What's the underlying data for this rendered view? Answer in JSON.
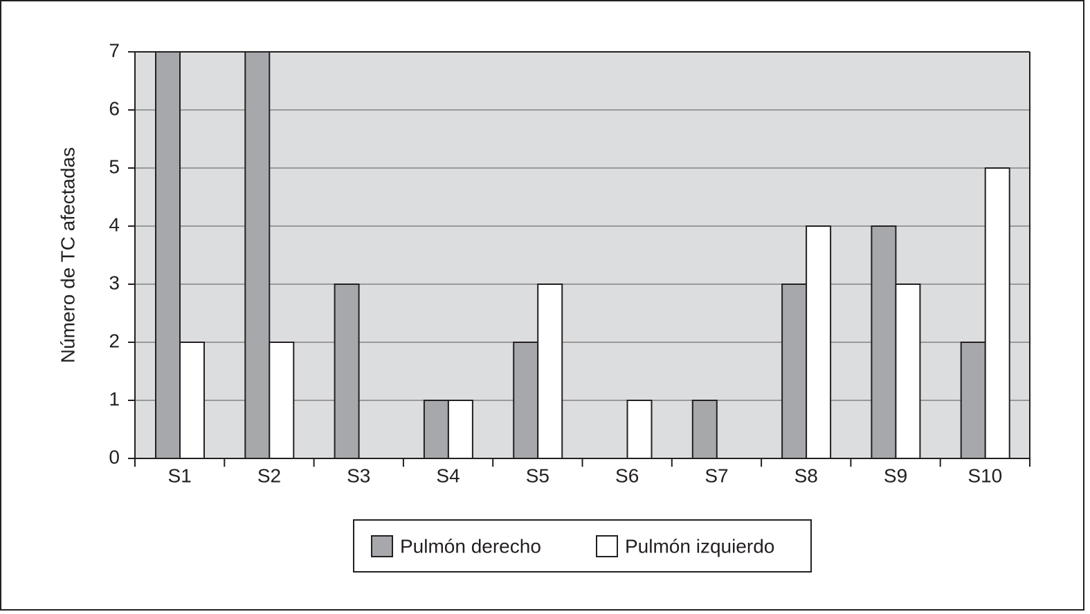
{
  "chart_data": {
    "type": "bar",
    "y_label": "Número de TC afectadas",
    "categories": [
      "S1",
      "S2",
      "S3",
      "S4",
      "S5",
      "S6",
      "S7",
      "S8",
      "S9",
      "S10"
    ],
    "series": [
      {
        "name": "Pulmón derecho",
        "color": "#a7a8ab",
        "values": [
          7,
          7,
          3,
          1,
          2,
          0,
          1,
          3,
          4,
          2
        ]
      },
      {
        "name": "Pulmón izquierdo",
        "color": "#ffffff",
        "values": [
          2,
          2,
          0,
          1,
          3,
          1,
          0,
          4,
          3,
          5
        ]
      }
    ],
    "ylim": [
      0,
      7
    ],
    "yticks": [
      0,
      1,
      2,
      3,
      4,
      5,
      6,
      7
    ],
    "grid": true,
    "legend": "bottom"
  }
}
